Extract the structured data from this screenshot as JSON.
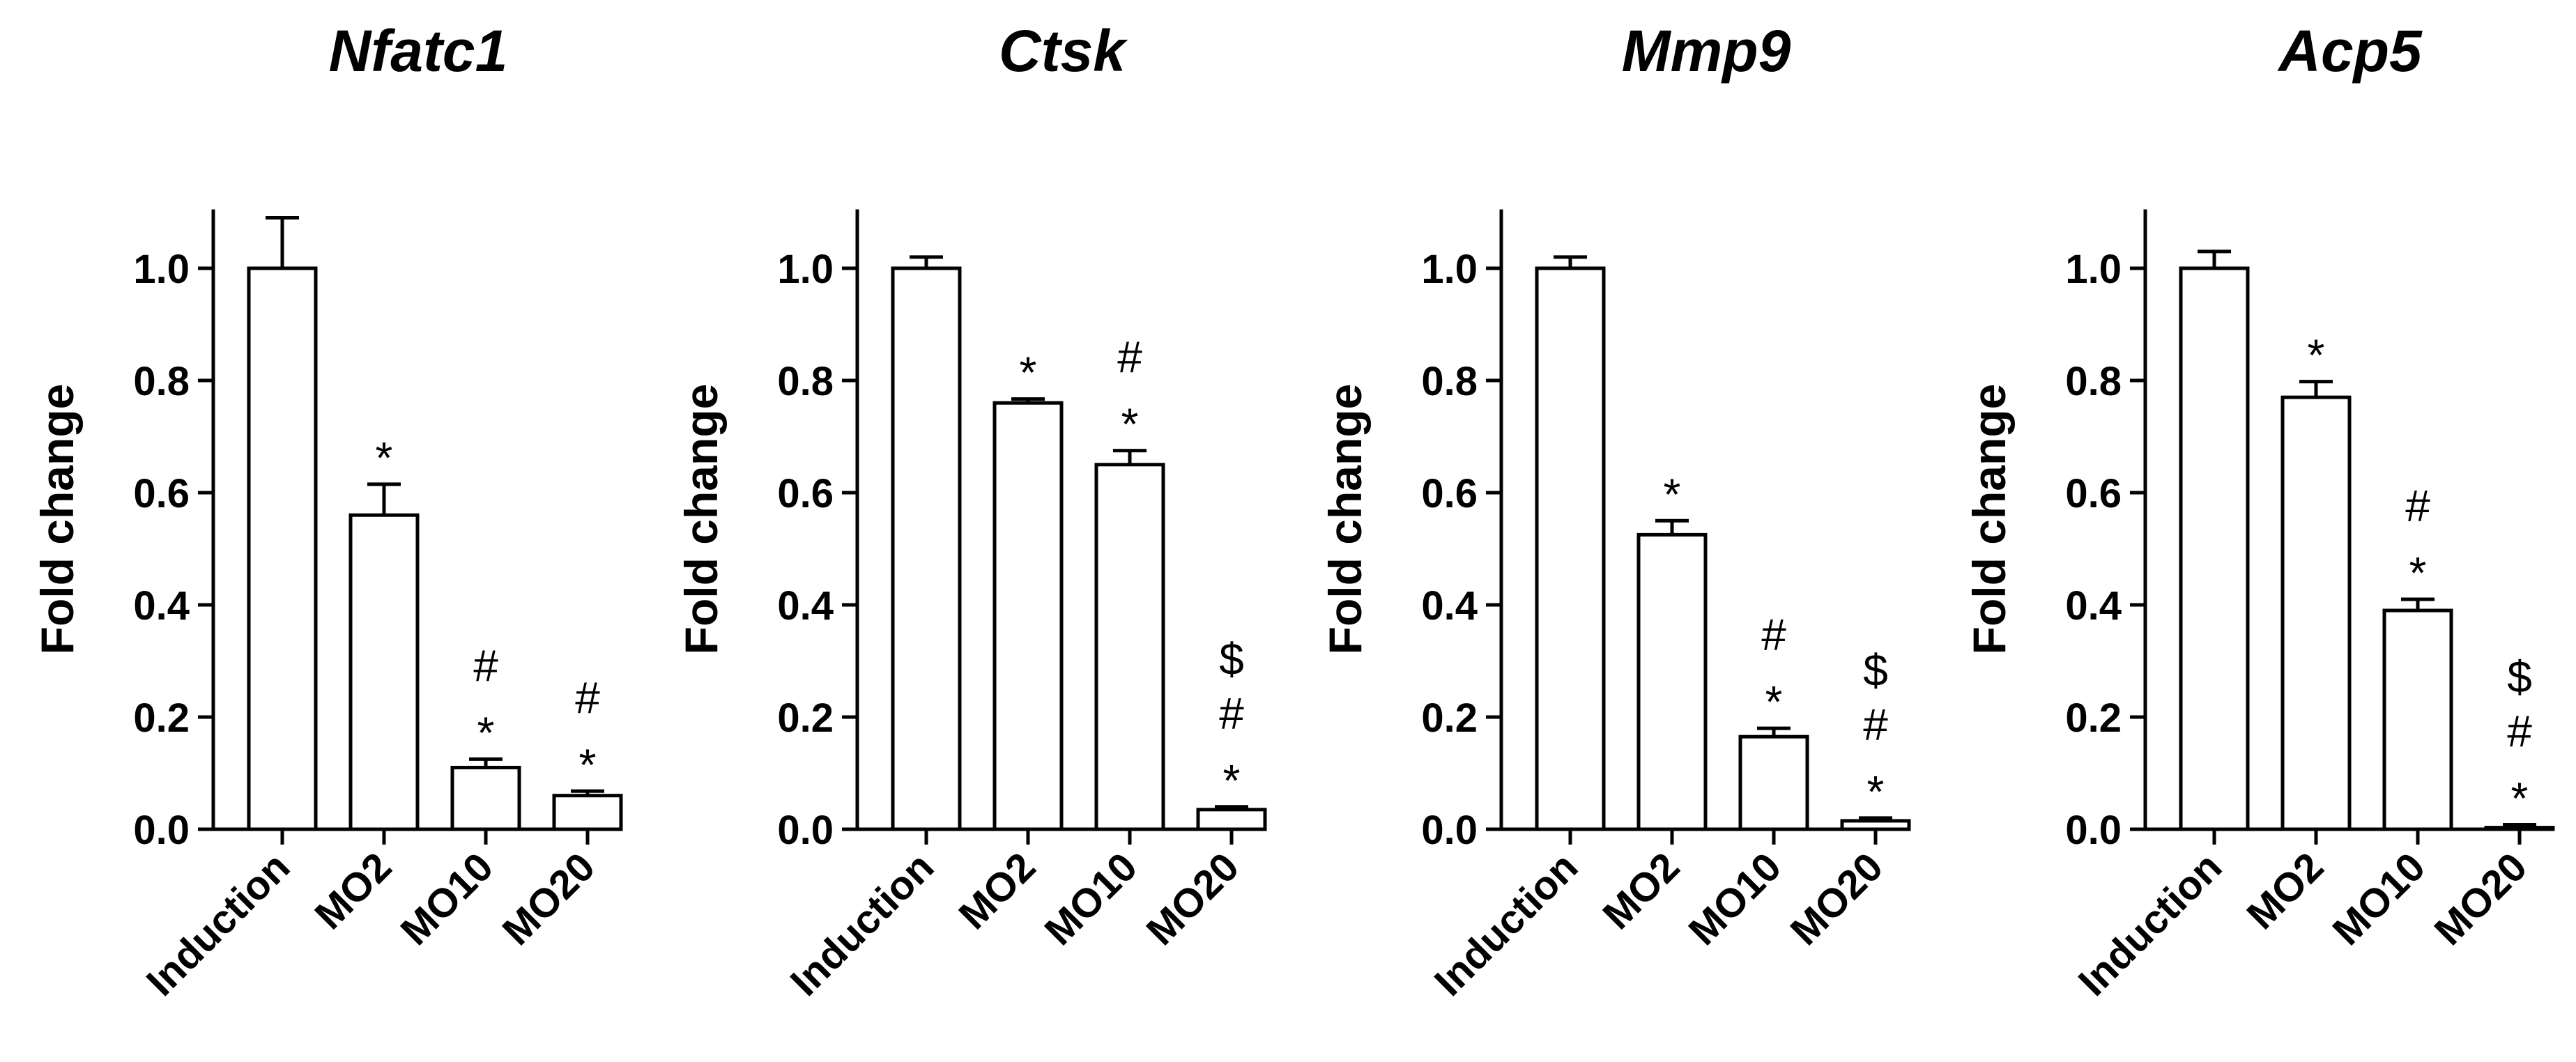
{
  "chart_data": [
    {
      "type": "bar",
      "title": "Nfatc1",
      "ylabel": "Fold change",
      "xlabel": "",
      "ylim": [
        0,
        1.1
      ],
      "yticks": [
        "0.0",
        "0.2",
        "0.4",
        "0.6",
        "0.8",
        "1.0"
      ],
      "categories": [
        "Induction",
        "MO2",
        "MO10",
        "MO20"
      ],
      "values": [
        1.0,
        0.56,
        0.11,
        0.06
      ],
      "errors": [
        0.09,
        0.055,
        0.015,
        0.008
      ],
      "annotations": [
        [],
        [
          "*"
        ],
        [
          "#",
          "*"
        ],
        [
          "#",
          "*"
        ]
      ]
    },
    {
      "type": "bar",
      "title": "Ctsk",
      "ylabel": "Fold change",
      "xlabel": "",
      "ylim": [
        0,
        1.1
      ],
      "yticks": [
        "0.0",
        "0.2",
        "0.4",
        "0.6",
        "0.8",
        "1.0"
      ],
      "categories": [
        "Induction",
        "MO2",
        "MO10",
        "MO20"
      ],
      "values": [
        1.0,
        0.76,
        0.65,
        0.035
      ],
      "errors": [
        0.02,
        0.007,
        0.025,
        0.005
      ],
      "annotations": [
        [],
        [
          "*"
        ],
        [
          "#",
          "*"
        ],
        [
          "$",
          "#",
          "*"
        ]
      ]
    },
    {
      "type": "bar",
      "title": "Mmp9",
      "ylabel": "Fold change",
      "xlabel": "",
      "ylim": [
        0,
        1.1
      ],
      "yticks": [
        "0.0",
        "0.2",
        "0.4",
        "0.6",
        "0.8",
        "1.0"
      ],
      "categories": [
        "Induction",
        "MO2",
        "MO10",
        "MO20"
      ],
      "values": [
        1.0,
        0.525,
        0.165,
        0.015
      ],
      "errors": [
        0.02,
        0.025,
        0.015,
        0.005
      ],
      "annotations": [
        [],
        [
          "*"
        ],
        [
          "#",
          "*"
        ],
        [
          "$",
          "#",
          "*"
        ]
      ]
    },
    {
      "type": "bar",
      "title": "Acp5",
      "ylabel": "Fold change",
      "xlabel": "",
      "ylim": [
        0,
        1.1
      ],
      "yticks": [
        "0.0",
        "0.2",
        "0.4",
        "0.6",
        "0.8",
        "1.0"
      ],
      "categories": [
        "Induction",
        "MO2",
        "MO10",
        "MO20"
      ],
      "values": [
        1.0,
        0.77,
        0.39,
        0.003
      ],
      "errors": [
        0.03,
        0.028,
        0.02,
        0.005
      ],
      "annotations": [
        [],
        [
          "*"
        ],
        [
          "#",
          "*"
        ],
        [
          "$",
          "#",
          "*"
        ]
      ]
    }
  ]
}
